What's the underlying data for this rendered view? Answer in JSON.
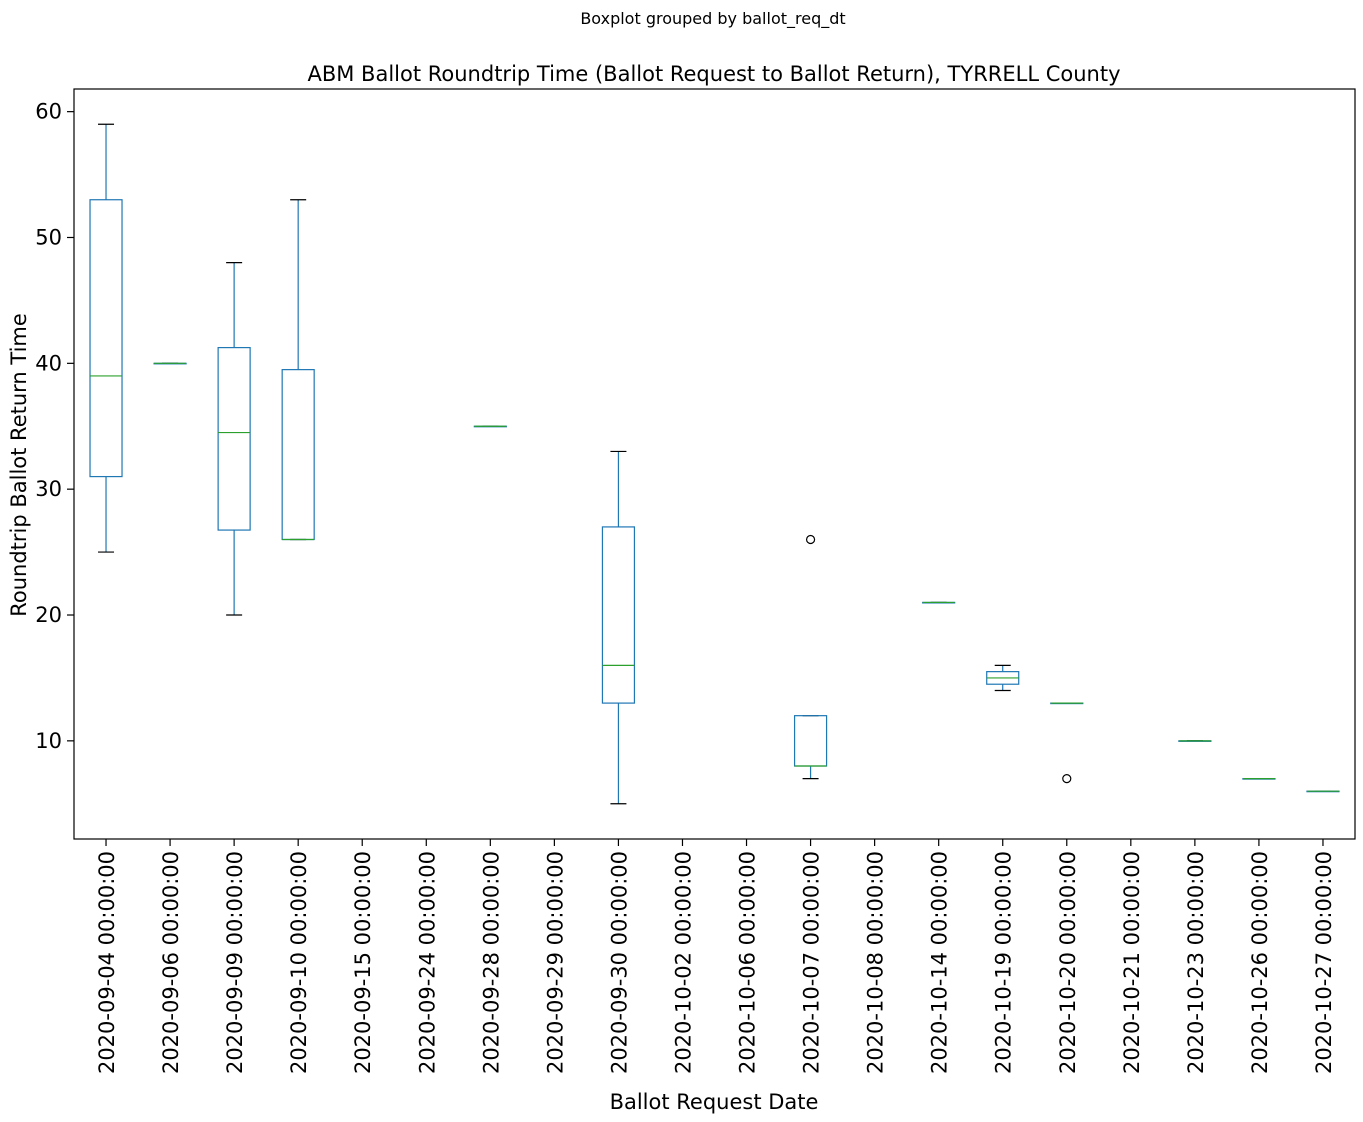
{
  "chart_data": {
    "type": "boxplot",
    "suptitle": "Boxplot grouped by ballot_req_dt",
    "title": "ABM Ballot Roundtrip Time (Ballot Request to Ballot Return), TYRRELL County",
    "xlabel": "Ballot Request Date",
    "ylabel": "Roundtrip Ballot Return Time",
    "ylim": [
      2.2,
      61.8
    ],
    "yticks": [
      10,
      20,
      30,
      40,
      50,
      60
    ],
    "grid": false,
    "colors": {
      "box": "#1f77b4",
      "median": "#2ca02c",
      "cap": "#000000",
      "outlier": "#000000"
    },
    "categories": [
      "2020-09-04 00:00:00",
      "2020-09-06 00:00:00",
      "2020-09-09 00:00:00",
      "2020-09-10 00:00:00",
      "2020-09-15 00:00:00",
      "2020-09-24 00:00:00",
      "2020-09-28 00:00:00",
      "2020-09-29 00:00:00",
      "2020-09-30 00:00:00",
      "2020-10-02 00:00:00",
      "2020-10-06 00:00:00",
      "2020-10-07 00:00:00",
      "2020-10-08 00:00:00",
      "2020-10-14 00:00:00",
      "2020-10-19 00:00:00",
      "2020-10-20 00:00:00",
      "2020-10-21 00:00:00",
      "2020-10-23 00:00:00",
      "2020-10-26 00:00:00",
      "2020-10-27 00:00:00"
    ],
    "boxes": [
      {
        "whislo": 25,
        "q1": 31,
        "med": 39,
        "q3": 53,
        "whishi": 59,
        "fliers": []
      },
      {
        "whislo": 40,
        "q1": 40,
        "med": 40,
        "q3": 40,
        "whishi": 40,
        "fliers": []
      },
      {
        "whislo": 20,
        "q1": 26.75,
        "med": 34.5,
        "q3": 41.25,
        "whishi": 48,
        "fliers": []
      },
      {
        "whislo": 26,
        "q1": 26,
        "med": 26,
        "q3": 39.5,
        "whishi": 53,
        "fliers": []
      },
      null,
      null,
      {
        "whislo": 35,
        "q1": 35,
        "med": 35,
        "q3": 35,
        "whishi": 35,
        "fliers": []
      },
      null,
      {
        "whislo": 5,
        "q1": 13,
        "med": 16,
        "q3": 27,
        "whishi": 33,
        "fliers": []
      },
      null,
      null,
      {
        "whislo": 7,
        "q1": 8,
        "med": 8,
        "q3": 12,
        "whishi": 12,
        "fliers": [
          26
        ]
      },
      null,
      {
        "whislo": 21,
        "q1": 21,
        "med": 21,
        "q3": 21,
        "whishi": 21,
        "fliers": []
      },
      {
        "whislo": 14,
        "q1": 14.5,
        "med": 15,
        "q3": 15.5,
        "whishi": 16,
        "fliers": []
      },
      {
        "whislo": 13,
        "q1": 13,
        "med": 13,
        "q3": 13,
        "whishi": 13,
        "fliers": [
          7
        ]
      },
      null,
      {
        "whislo": 10,
        "q1": 10,
        "med": 10,
        "q3": 10,
        "whishi": 10,
        "fliers": []
      },
      {
        "whislo": 7,
        "q1": 7,
        "med": 7,
        "q3": 7,
        "whishi": 7,
        "fliers": []
      },
      {
        "whislo": 6,
        "q1": 6,
        "med": 6,
        "q3": 6,
        "whishi": 6,
        "fliers": []
      }
    ]
  }
}
